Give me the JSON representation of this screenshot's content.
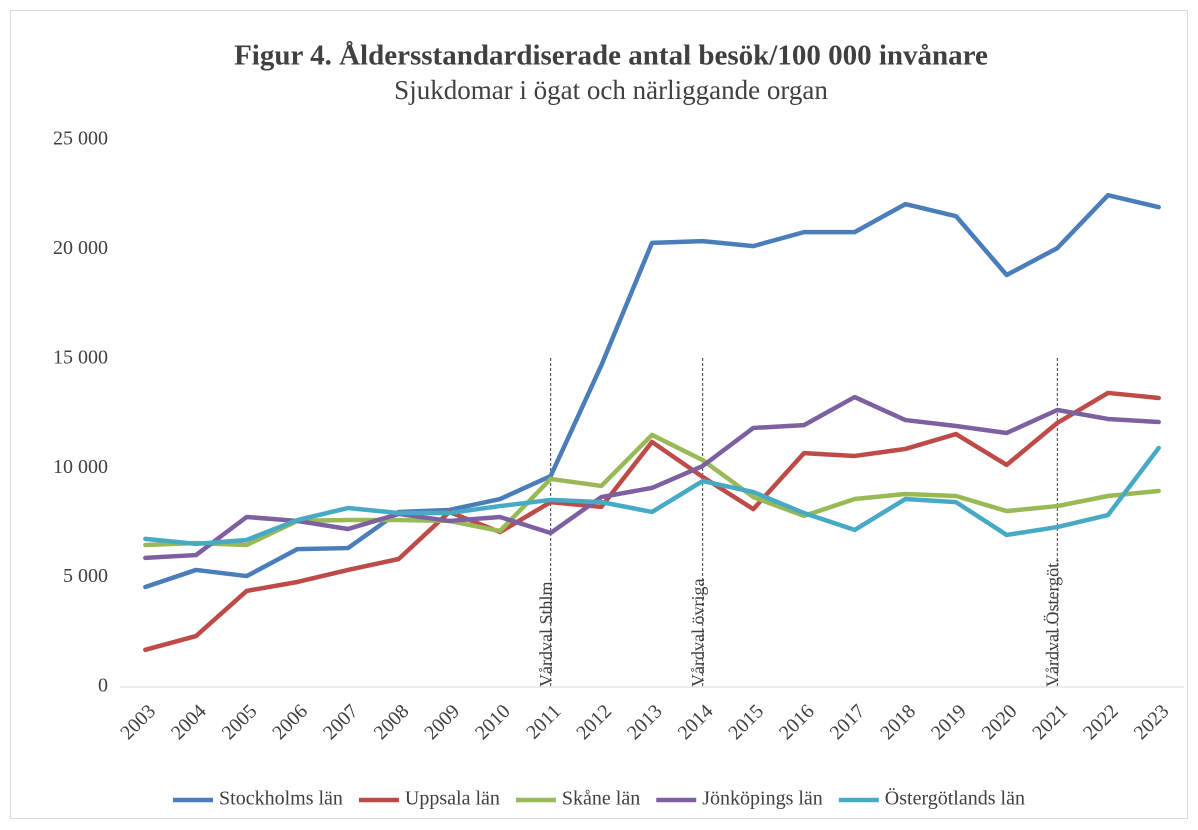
{
  "chart_data": {
    "type": "line",
    "title": "Figur 4. Åldersstandardiserade antal besök/100 000 invånare",
    "subtitle": "Sjukdomar i ögat och närliggande organ",
    "categories": [
      "2003",
      "2004",
      "2005",
      "2006",
      "2007",
      "2008",
      "2009",
      "2010",
      "2011",
      "2012",
      "2013",
      "2014",
      "2015",
      "2016",
      "2017",
      "2018",
      "2019",
      "2020",
      "2021",
      "2022",
      "2023"
    ],
    "series": [
      {
        "name": "Stockholms län",
        "color": "#4a7ebb",
        "values": [
          4570,
          5350,
          5070,
          6300,
          6350,
          8000,
          8090,
          8590,
          9640,
          14700,
          20300,
          20380,
          20150,
          20790,
          20790,
          22070,
          21520,
          18830,
          20060,
          22480,
          21930
        ]
      },
      {
        "name": "Uppsala län",
        "color": "#be4b48",
        "values": [
          1700,
          2330,
          4390,
          4800,
          5350,
          5850,
          8000,
          7080,
          8450,
          8230,
          11200,
          9600,
          8130,
          10690,
          10560,
          10880,
          11560,
          10150,
          12070,
          13440,
          13210
        ]
      },
      {
        "name": "Skåne län",
        "color": "#98b954",
        "values": [
          6490,
          6580,
          6490,
          7590,
          7630,
          7630,
          7590,
          7130,
          9510,
          9190,
          11520,
          10370,
          8680,
          7820,
          8590,
          8820,
          8730,
          8040,
          8270,
          8730,
          8960
        ]
      },
      {
        "name": "Jönköpings län",
        "color": "#7d60a0",
        "values": [
          5900,
          6030,
          7770,
          7590,
          7220,
          7910,
          7590,
          7770,
          7040,
          8680,
          9100,
          10100,
          11840,
          11970,
          13250,
          12200,
          11930,
          11610,
          12660,
          12250,
          12110
        ]
      },
      {
        "name": "Östergötlands län",
        "color": "#46aac5",
        "values": [
          6770,
          6540,
          6720,
          7630,
          8180,
          7950,
          7950,
          8270,
          8550,
          8450,
          8000,
          9410,
          8910,
          7950,
          7180,
          8590,
          8450,
          6950,
          7310,
          7860,
          10920
        ]
      }
    ],
    "ylim": [
      0,
      25000
    ],
    "yticks": [
      0,
      {
        "value": 5000,
        "label": "5 000"
      },
      {
        "value": 10000,
        "label": "10 000"
      },
      {
        "value": 15000,
        "label": "15 000"
      },
      {
        "value": 20000,
        "label": "20 000"
      },
      {
        "value": 25000,
        "label": "25 000"
      }
    ],
    "grid": false,
    "legend": "bottom",
    "annotations": [
      {
        "x": "2011",
        "label": "Vårdval Sthlm"
      },
      {
        "x": "2014",
        "label": "Vårdval övriga"
      },
      {
        "x": "2021",
        "label": "Vårdval Östergöt."
      }
    ]
  }
}
